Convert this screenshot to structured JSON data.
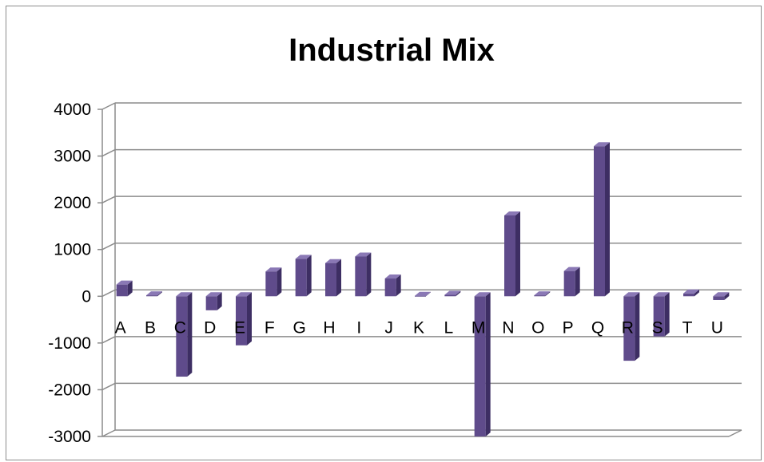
{
  "chart_data": {
    "type": "bar",
    "title": "Industrial Mix",
    "xlabel": "",
    "ylabel": "",
    "categories": [
      "A",
      "B",
      "C",
      "D",
      "E",
      "F",
      "G",
      "H",
      "I",
      "J",
      "K",
      "L",
      "M",
      "N",
      "O",
      "P",
      "Q",
      "R",
      "S",
      "T",
      "U"
    ],
    "values": [
      250,
      20,
      -1720,
      -300,
      -1050,
      530,
      800,
      710,
      850,
      380,
      10,
      30,
      -3000,
      1730,
      20,
      540,
      3210,
      -1380,
      -860,
      60,
      -80
    ],
    "ylim": [
      -3000,
      4000
    ],
    "yticks": [
      4000,
      3000,
      2000,
      1000,
      0,
      -1000,
      -2000,
      -3000
    ],
    "grid": true,
    "legend": "none",
    "colors": {
      "bar_front": "#5f4b8b",
      "bar_side": "#3d2e63",
      "bar_top": "#8a78b5",
      "grid": "#8c8c8c"
    }
  }
}
